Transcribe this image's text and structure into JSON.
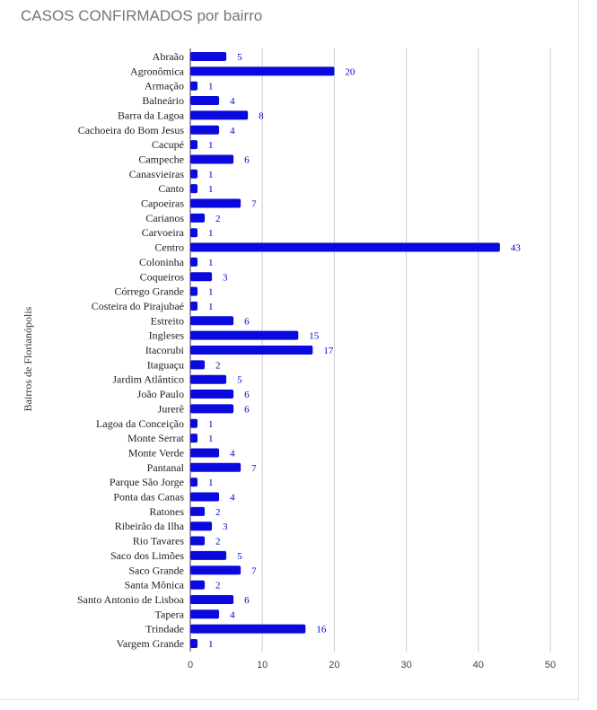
{
  "title": "CASOS CONFIRMADOS por bairro",
  "chart_data": {
    "type": "bar",
    "orientation": "horizontal",
    "title": "CASOS CONFIRMADOS por bairro",
    "ylabel": "Bairros de Florianópolis",
    "xlabel": "",
    "xlim": [
      0,
      50
    ],
    "xticks": [
      0,
      10,
      20,
      30,
      40,
      50
    ],
    "grid": true,
    "bar_color": "#0a0adf",
    "label_color": "#0000cc",
    "categories": [
      "Abraão",
      "Agronômica",
      "Armação",
      "Balneário",
      "Barra da Lagoa",
      "Cachoeira do Bom Jesus",
      "Cacupé",
      "Campeche",
      "Canasvieiras",
      "Canto",
      "Capoeiras",
      "Carianos",
      "Carvoeira",
      "Centro",
      "Coloninha",
      "Coqueiros",
      "Córrego Grande",
      "Costeira do Pirajubaé",
      "Estreito",
      "Ingleses",
      "Itacorubi",
      "Itaguaçu",
      "Jardim Atlântico",
      "João Paulo",
      "Jurerê",
      "Lagoa da Conceição",
      "Monte Serrat",
      "Monte Verde",
      "Pantanal",
      "Parque São Jorge",
      "Ponta das Canas",
      "Ratones",
      "Ribeirão da Ilha",
      "Rio Tavares",
      "Saco dos Limões",
      "Saco Grande",
      "Santa Mônica",
      "Santo Antonio de Lisboa",
      "Tapera",
      "Trindade",
      "Vargem Grande"
    ],
    "values": [
      5,
      20,
      1,
      4,
      8,
      4,
      1,
      6,
      1,
      1,
      7,
      2,
      1,
      43,
      1,
      3,
      1,
      1,
      6,
      15,
      17,
      2,
      5,
      6,
      6,
      1,
      1,
      4,
      7,
      1,
      4,
      2,
      3,
      2,
      5,
      7,
      2,
      6,
      4,
      16,
      1
    ]
  }
}
